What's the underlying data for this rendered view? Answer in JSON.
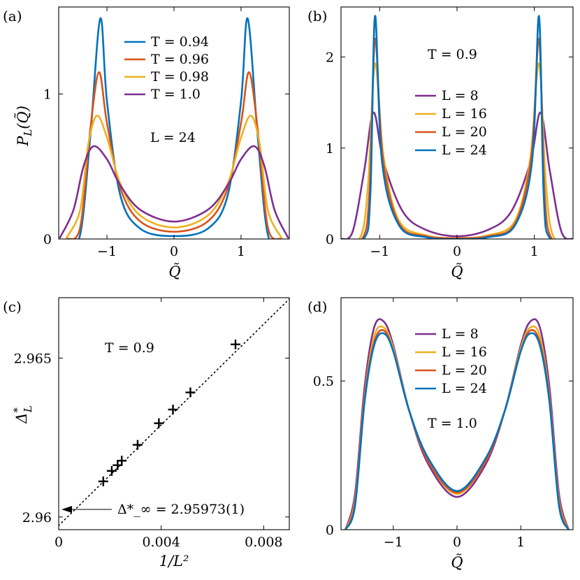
{
  "chart_data": [
    {
      "panel": "(a)",
      "type": "line",
      "xlabel": "Q̃",
      "ylabel": "P_L(Q̃)",
      "xlim": [
        -1.72,
        1.72
      ],
      "ylim": [
        0,
        1.6
      ],
      "xticks": [
        -1,
        0,
        1
      ],
      "yticks": [
        0,
        1
      ],
      "xtick_labels": [
        "−1",
        "0",
        "1"
      ],
      "ytick_labels": [
        "0",
        "1"
      ],
      "annotations": [
        "L = 24"
      ],
      "legend_position": "upper-center",
      "series": [
        {
          "name": "T = 0.94",
          "color": "#0072bd",
          "x": [
            -1.6,
            -1.4,
            -1.25,
            -1.1,
            -1.0,
            -0.8,
            -0.5,
            0,
            0.5,
            0.8,
            1.0,
            1.1,
            1.25,
            1.4,
            1.6
          ],
          "values": [
            0.0,
            0.03,
            0.7,
            1.52,
            0.95,
            0.3,
            0.07,
            0.02,
            0.07,
            0.3,
            0.95,
            1.52,
            0.7,
            0.03,
            0.0
          ]
        },
        {
          "name": "T = 0.96",
          "color": "#d95319",
          "x": [
            -1.6,
            -1.4,
            -1.25,
            -1.12,
            -1.0,
            -0.8,
            -0.5,
            0,
            0.5,
            0.8,
            1.0,
            1.12,
            1.25,
            1.4,
            1.6
          ],
          "values": [
            0.0,
            0.08,
            0.75,
            1.15,
            0.8,
            0.35,
            0.12,
            0.05,
            0.12,
            0.35,
            0.8,
            1.15,
            0.75,
            0.08,
            0.0
          ]
        },
        {
          "name": "T = 0.98",
          "color": "#edb120",
          "x": [
            -1.6,
            -1.4,
            -1.28,
            -1.15,
            -1.0,
            -0.8,
            -0.5,
            0,
            0.5,
            0.8,
            1.0,
            1.15,
            1.28,
            1.4,
            1.6
          ],
          "values": [
            0.01,
            0.2,
            0.65,
            0.85,
            0.7,
            0.38,
            0.16,
            0.08,
            0.16,
            0.38,
            0.7,
            0.85,
            0.65,
            0.2,
            0.01
          ]
        },
        {
          "name": "T = 1.0",
          "color": "#7e2f8e",
          "x": [
            -1.7,
            -1.5,
            -1.35,
            -1.2,
            -1.0,
            -0.8,
            -0.5,
            0,
            0.5,
            0.8,
            1.0,
            1.2,
            1.35,
            1.5,
            1.7
          ],
          "values": [
            0.01,
            0.2,
            0.5,
            0.64,
            0.55,
            0.37,
            0.2,
            0.12,
            0.2,
            0.37,
            0.55,
            0.64,
            0.5,
            0.2,
            0.01
          ]
        }
      ]
    },
    {
      "panel": "(b)",
      "type": "line",
      "xlabel": "Q̃",
      "xlim": [
        -1.5,
        1.5
      ],
      "ylim": [
        0,
        2.55
      ],
      "xticks": [
        -1,
        0,
        1
      ],
      "yticks": [
        0,
        1,
        2
      ],
      "xtick_labels": [
        "−1",
        "0",
        "1"
      ],
      "ytick_labels": [
        "0",
        "1",
        "2"
      ],
      "annotations": [
        "T = 0.9"
      ],
      "legend_position": "center",
      "series": [
        {
          "name": "L = 8",
          "color": "#7e2f8e",
          "x": [
            -1.5,
            -1.35,
            -1.2,
            -1.08,
            -0.95,
            -0.7,
            -0.4,
            0,
            0.4,
            0.7,
            0.95,
            1.08,
            1.2,
            1.35,
            1.5
          ],
          "values": [
            0.0,
            0.08,
            0.75,
            1.39,
            0.85,
            0.3,
            0.1,
            0.03,
            0.1,
            0.3,
            0.85,
            1.39,
            0.75,
            0.08,
            0.0
          ]
        },
        {
          "name": "L = 16",
          "color": "#edb120",
          "x": [
            -1.5,
            -1.25,
            -1.15,
            -1.06,
            -0.95,
            -0.75,
            -0.4,
            0,
            0.4,
            0.75,
            0.95,
            1.06,
            1.15,
            1.25,
            1.5
          ],
          "values": [
            0.0,
            0.02,
            0.6,
            1.93,
            0.9,
            0.2,
            0.04,
            0.01,
            0.04,
            0.2,
            0.9,
            1.93,
            0.6,
            0.02,
            0.0
          ]
        },
        {
          "name": "L = 20",
          "color": "#d95319",
          "x": [
            -1.5,
            -1.22,
            -1.13,
            -1.06,
            -0.96,
            -0.75,
            -0.4,
            0,
            0.4,
            0.75,
            0.96,
            1.06,
            1.13,
            1.22,
            1.5
          ],
          "values": [
            0.0,
            0.01,
            0.55,
            2.2,
            0.9,
            0.17,
            0.03,
            0.01,
            0.03,
            0.17,
            0.9,
            2.2,
            0.55,
            0.01,
            0.0
          ]
        },
        {
          "name": "L = 24",
          "color": "#0072bd",
          "x": [
            -1.5,
            -1.2,
            -1.12,
            -1.06,
            -0.97,
            -0.75,
            -0.4,
            0,
            0.4,
            0.75,
            0.97,
            1.06,
            1.12,
            1.2,
            1.5
          ],
          "values": [
            0.0,
            0.01,
            0.5,
            2.45,
            0.85,
            0.15,
            0.02,
            0.0,
            0.02,
            0.15,
            0.85,
            2.45,
            0.5,
            0.01,
            0.0
          ]
        }
      ]
    },
    {
      "panel": "(c)",
      "type": "scatter",
      "xlabel": "1/L²",
      "ylabel": "Δ*_L",
      "xlim": [
        0,
        0.009
      ],
      "ylim": [
        2.9596,
        2.9669
      ],
      "xticks": [
        0,
        0.004,
        0.008
      ],
      "yticks": [
        2.96,
        2.965
      ],
      "xtick_labels": [
        "0",
        "0.004",
        "0.008"
      ],
      "ytick_labels": [
        "2.96",
        "2.965"
      ],
      "annotations": [
        "T = 0.9",
        "Δ*_∞ = 2.95973(1)"
      ],
      "extrapolated_value": 2.95973,
      "fit_line": {
        "x": [
          0,
          0.009
        ],
        "y": [
          2.95973,
          2.96686
        ]
      },
      "series": [
        {
          "x": [
            0.00174,
            0.00207,
            0.0023,
            0.00246,
            0.00308,
            0.00391,
            0.00446,
            0.00514,
            0.0069
          ],
          "values": [
            2.96112,
            2.96145,
            2.96163,
            2.96177,
            2.96227,
            2.96295,
            2.96338,
            2.96392,
            2.96543
          ]
        }
      ]
    },
    {
      "panel": "(d)",
      "type": "line",
      "xlabel": "Q̃",
      "xlim": [
        -1.82,
        1.82
      ],
      "ylim": [
        0,
        0.78
      ],
      "xticks": [
        -1,
        0,
        1
      ],
      "yticks": [
        0,
        0.5
      ],
      "xtick_labels": [
        "−1",
        "0",
        "1"
      ],
      "ytick_labels": [
        "0",
        "0.5"
      ],
      "annotations": [
        "T = 1.0"
      ],
      "legend_position": "upper-center",
      "series": [
        {
          "name": "L = 8",
          "color": "#7e2f8e",
          "x": [
            -1.75,
            -1.6,
            -1.45,
            -1.3,
            -1.15,
            -1.0,
            -0.75,
            -0.45,
            0,
            0.45,
            0.75,
            1.0,
            1.15,
            1.3,
            1.45,
            1.6,
            1.75
          ],
          "values": [
            0.0,
            0.12,
            0.48,
            0.68,
            0.7,
            0.62,
            0.4,
            0.22,
            0.11,
            0.22,
            0.4,
            0.62,
            0.7,
            0.68,
            0.48,
            0.12,
            0.0
          ]
        },
        {
          "name": "L = 16",
          "color": "#edb120",
          "x": [
            -1.75,
            -1.6,
            -1.45,
            -1.3,
            -1.15,
            -1.0,
            -0.75,
            -0.45,
            0,
            0.45,
            0.75,
            1.0,
            1.15,
            1.3,
            1.45,
            1.6,
            1.75
          ],
          "values": [
            0.0,
            0.1,
            0.45,
            0.65,
            0.68,
            0.61,
            0.4,
            0.23,
            0.12,
            0.23,
            0.4,
            0.61,
            0.68,
            0.65,
            0.45,
            0.1,
            0.0
          ]
        },
        {
          "name": "L = 20",
          "color": "#d95319",
          "x": [
            -1.75,
            -1.6,
            -1.45,
            -1.3,
            -1.15,
            -1.0,
            -0.75,
            -0.45,
            0,
            0.45,
            0.75,
            1.0,
            1.15,
            1.3,
            1.45,
            1.6,
            1.75
          ],
          "values": [
            0.0,
            0.09,
            0.44,
            0.63,
            0.67,
            0.6,
            0.4,
            0.23,
            0.125,
            0.23,
            0.4,
            0.6,
            0.67,
            0.63,
            0.44,
            0.09,
            0.0
          ]
        },
        {
          "name": "L = 24",
          "color": "#0072bd",
          "x": [
            -1.75,
            -1.6,
            -1.45,
            -1.3,
            -1.15,
            -1.0,
            -0.75,
            -0.45,
            0,
            0.45,
            0.75,
            1.0,
            1.15,
            1.3,
            1.45,
            1.6,
            1.75
          ],
          "values": [
            0.0,
            0.08,
            0.43,
            0.62,
            0.66,
            0.6,
            0.4,
            0.24,
            0.13,
            0.24,
            0.4,
            0.6,
            0.66,
            0.62,
            0.43,
            0.08,
            0.0
          ]
        }
      ]
    }
  ]
}
